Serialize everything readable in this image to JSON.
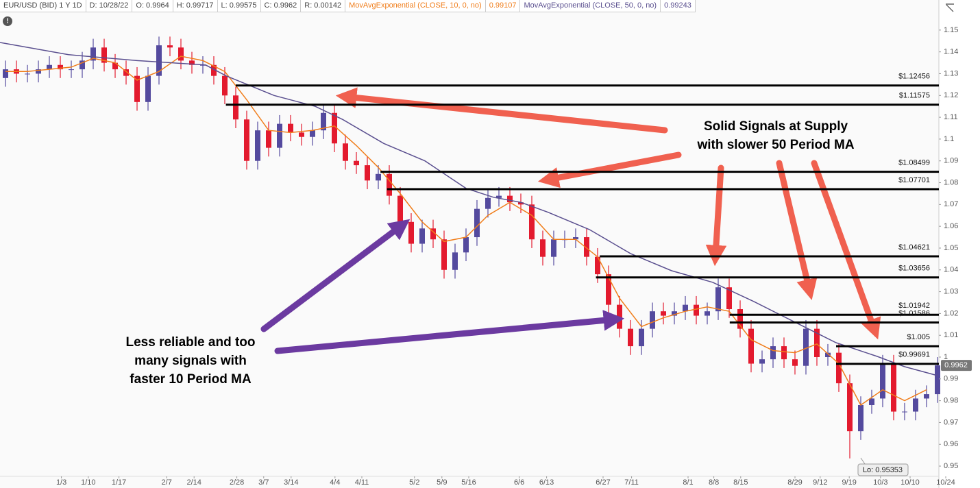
{
  "header": [
    "EUR/USD (BID) 1 Y 1D",
    "D: 10/28/22",
    "O: 0.9964",
    "H: 0.99717",
    "L: 0.99575",
    "C: 0.9962",
    "R: 0.00142"
  ],
  "chart_data": {
    "type": "candlestick",
    "xlim": [
      0,
      171
    ],
    "ylim": [
      0.9453,
      1.1575
    ],
    "yticks": [
      0.95,
      0.96,
      0.97,
      0.98,
      0.99,
      1,
      1.01,
      1.02,
      1.03,
      1.04,
      1.05,
      1.06,
      1.07,
      1.08,
      1.09,
      1.1,
      1.11,
      1.12,
      1.13,
      1.14,
      1.15
    ],
    "xticks": [
      {
        "value": 11.2,
        "label": "1/3"
      },
      {
        "value": 16.1,
        "label": "1/10"
      },
      {
        "value": 21.7,
        "label": "1/17"
      },
      {
        "value": 30.4,
        "label": "2/7"
      },
      {
        "value": 35.4,
        "label": "2/14"
      },
      {
        "value": 43.2,
        "label": "2/28"
      },
      {
        "value": 48.1,
        "label": "3/7"
      },
      {
        "value": 53.1,
        "label": "3/14"
      },
      {
        "value": 61.1,
        "label": "4/4"
      },
      {
        "value": 66,
        "label": "4/11"
      },
      {
        "value": 75.6,
        "label": "5/2"
      },
      {
        "value": 80.6,
        "label": "5/9"
      },
      {
        "value": 85.5,
        "label": "5/16"
      },
      {
        "value": 94.7,
        "label": "6/6"
      },
      {
        "value": 99.7,
        "label": "6/13"
      },
      {
        "value": 110,
        "label": "6/27"
      },
      {
        "value": 115.2,
        "label": "7/11"
      },
      {
        "value": 125.5,
        "label": "8/1"
      },
      {
        "value": 130.2,
        "label": "8/8"
      },
      {
        "value": 135.1,
        "label": "8/15"
      },
      {
        "value": 145,
        "label": "8/29"
      },
      {
        "value": 149.6,
        "label": "9/12"
      },
      {
        "value": 154.9,
        "label": "9/19"
      },
      {
        "value": 160.6,
        "label": "10/3"
      },
      {
        "value": 166,
        "label": "10/10"
      },
      {
        "value": 172.5,
        "label": "10/24"
      }
    ],
    "up_color": "#544a9e",
    "down_color": "#e31a2e",
    "candles": {
      "x": [
        1,
        3,
        5,
        7,
        9,
        11,
        13,
        15,
        17,
        19,
        21,
        23,
        25,
        27,
        29,
        31,
        33,
        35,
        37,
        39,
        41,
        43,
        45,
        47,
        49,
        51,
        53,
        55,
        57,
        59,
        61,
        63,
        65,
        67,
        69,
        71,
        73,
        75,
        77,
        79,
        81,
        83,
        85,
        87,
        89,
        91,
        93,
        95,
        97,
        99,
        101,
        103,
        105,
        107,
        109,
        111,
        113,
        115,
        117,
        119,
        121,
        123,
        125,
        127,
        129,
        131,
        133,
        135,
        137,
        139,
        141,
        143,
        145,
        147,
        149,
        151,
        153,
        155,
        157,
        159,
        161,
        163,
        165,
        167,
        169,
        171
      ],
      "open": [
        1.128,
        1.132,
        1.13,
        1.13,
        1.132,
        1.134,
        1.132,
        1.132,
        1.136,
        1.142,
        1.135,
        1.132,
        1.129,
        1.117,
        1.129,
        1.143,
        1.142,
        1.136,
        1.134,
        1.134,
        1.129,
        1.12,
        1.109,
        1.09,
        1.104,
        1.096,
        1.107,
        1.103,
        1.101,
        1.104,
        1.112,
        1.098,
        1.09,
        1.088,
        1.081,
        1.084,
        1.074,
        1.062,
        1.052,
        1.059,
        1.054,
        1.04,
        1.048,
        1.055,
        1.068,
        1.073,
        1.074,
        1.071,
        1.07,
        1.054,
        1.046,
        1.054,
        1.054,
        1.055,
        1.046,
        1.038,
        1.024,
        1.013,
        1.005,
        1.013,
        1.021,
        1.019,
        1.021,
        1.024,
        1.019,
        1.021,
        1.032,
        1.022,
        1.013,
        0.997,
        0.999,
        1.005,
        0.999,
        0.996,
        1.013,
        1.0,
        1.002,
        0.988,
        0.966,
        0.978,
        0.981,
        0.997,
        0.975,
        0.975,
        0.981,
        0.983
      ],
      "high": [
        1.136,
        1.136,
        1.134,
        1.136,
        1.138,
        1.138,
        1.136,
        1.14,
        1.146,
        1.146,
        1.139,
        1.136,
        1.133,
        1.133,
        1.147,
        1.147,
        1.146,
        1.14,
        1.138,
        1.138,
        1.133,
        1.124,
        1.113,
        1.108,
        1.108,
        1.111,
        1.111,
        1.107,
        1.108,
        1.116,
        1.116,
        1.102,
        1.094,
        1.092,
        1.088,
        1.088,
        1.078,
        1.066,
        1.063,
        1.063,
        1.058,
        1.052,
        1.059,
        1.072,
        1.077,
        1.078,
        1.078,
        1.075,
        1.074,
        1.058,
        1.058,
        1.058,
        1.059,
        1.059,
        1.05,
        1.042,
        1.028,
        1.017,
        1.017,
        1.025,
        1.025,
        1.025,
        1.028,
        1.028,
        1.025,
        1.036,
        1.036,
        1.026,
        1.017,
        1.003,
        1.009,
        1.009,
        1.003,
        1.017,
        1.017,
        1.006,
        1.006,
        0.992,
        0.982,
        0.985,
        1.001,
        1.001,
        0.979,
        0.985,
        0.987,
        1.0
      ],
      "low": [
        1.124,
        1.126,
        1.126,
        1.126,
        1.128,
        1.128,
        1.128,
        1.128,
        1.132,
        1.131,
        1.128,
        1.125,
        1.113,
        1.113,
        1.125,
        1.138,
        1.132,
        1.13,
        1.13,
        1.125,
        1.116,
        1.105,
        1.086,
        1.086,
        1.092,
        1.092,
        1.099,
        1.097,
        1.097,
        1.1,
        1.094,
        1.086,
        1.084,
        1.077,
        1.077,
        1.07,
        1.058,
        1.048,
        1.048,
        1.05,
        1.036,
        1.036,
        1.044,
        1.051,
        1.064,
        1.069,
        1.067,
        1.066,
        1.05,
        1.042,
        1.042,
        1.05,
        1.05,
        1.042,
        1.034,
        1.02,
        1.009,
        1.001,
        1.001,
        1.009,
        1.015,
        1.015,
        1.017,
        1.015,
        1.015,
        1.017,
        1.018,
        1.009,
        0.993,
        0.993,
        0.995,
        0.995,
        0.992,
        0.992,
        0.996,
        0.996,
        0.984,
        0.95353,
        0.962,
        0.974,
        0.977,
        0.971,
        0.971,
        0.971,
        0.977,
        0.979
      ],
      "close": [
        1.132,
        1.13,
        1.13,
        1.132,
        1.134,
        1.132,
        1.132,
        1.136,
        1.142,
        1.135,
        1.132,
        1.129,
        1.117,
        1.129,
        1.143,
        1.142,
        1.136,
        1.134,
        1.134,
        1.129,
        1.12,
        1.109,
        1.09,
        1.104,
        1.096,
        1.107,
        1.103,
        1.101,
        1.104,
        1.112,
        1.098,
        1.09,
        1.088,
        1.081,
        1.084,
        1.074,
        1.062,
        1.052,
        1.059,
        1.054,
        1.04,
        1.048,
        1.055,
        1.068,
        1.073,
        1.074,
        1.071,
        1.07,
        1.054,
        1.046,
        1.054,
        1.054,
        1.055,
        1.046,
        1.038,
        1.024,
        1.013,
        1.005,
        1.013,
        1.021,
        1.019,
        1.021,
        1.024,
        1.019,
        1.021,
        1.032,
        1.022,
        1.013,
        0.997,
        0.999,
        1.005,
        0.999,
        0.996,
        1.013,
        1.0,
        1.002,
        0.988,
        0.966,
        0.978,
        0.981,
        0.997,
        0.975,
        0.975,
        0.981,
        0.983,
        0.9962
      ]
    },
    "last_price": 0.9962,
    "low_label": "Lo: 0.95353",
    "series": [
      {
        "name": "MovAvgExponential (CLOSE, 10, 0, no)",
        "last_value": 0.99107,
        "color": "#f07d1a",
        "x": [
          1,
          5,
          9,
          13,
          17,
          21,
          25,
          29,
          33,
          37,
          41,
          45,
          49,
          53,
          57,
          61,
          65,
          69,
          73,
          77,
          81,
          85,
          89,
          93,
          97,
          101,
          105,
          109,
          113,
          117,
          121,
          125,
          129,
          133,
          137,
          141,
          145,
          149,
          153,
          157,
          161,
          165,
          169
        ],
        "values": [
          1.131,
          1.131,
          1.132,
          1.133,
          1.137,
          1.135,
          1.127,
          1.131,
          1.138,
          1.136,
          1.131,
          1.118,
          1.104,
          1.103,
          1.104,
          1.106,
          1.097,
          1.087,
          1.075,
          1.062,
          1.053,
          1.055,
          1.065,
          1.071,
          1.065,
          1.054,
          1.054,
          1.046,
          1.027,
          1.014,
          1.018,
          1.021,
          1.023,
          1.021,
          1.008,
          1.003,
          1.002,
          1.006,
          0.997,
          0.978,
          0.985,
          0.98,
          0.985
        ]
      },
      {
        "name": "MovAvgExponential (CLOSE, 50, 0, no)",
        "last_value": 0.99243,
        "color": "#5a4f8f",
        "x": [
          0,
          12.5,
          25,
          37.5,
          41.25,
          50,
          57.5,
          62.5,
          70,
          77.5,
          85,
          90,
          95,
          100,
          107.5,
          115,
          122.5,
          130,
          137.5,
          145,
          152.5,
          160,
          165,
          171
        ],
        "values": [
          1.1443,
          1.1387,
          1.136,
          1.134,
          1.129,
          1.12,
          1.115,
          1.109,
          1.098,
          1.09,
          1.0774,
          1.0733,
          1.071,
          1.0664,
          1.0585,
          1.0475,
          1.0396,
          1.0343,
          1.0255,
          1.016,
          1.0066,
          1.0003,
          0.9956,
          0.9915
        ]
      }
    ],
    "levels": [
      {
        "value": 1.12456,
        "label": "$1.12456",
        "from": 43
      },
      {
        "value": 1.11575,
        "label": "$1.11575",
        "from": 41.2
      },
      {
        "value": 1.08499,
        "label": "$1.08499",
        "from": 69.4
      },
      {
        "value": 1.07701,
        "label": "$1.07701",
        "from": 70.6
      },
      {
        "value": 1.04621,
        "label": "$1.04621",
        "from": 109.4
      },
      {
        "value": 1.03656,
        "label": "$1.03656",
        "from": 108.7
      },
      {
        "value": 1.01942,
        "label": "$1.01942",
        "from": 133.1
      },
      {
        "value": 1.01586,
        "label": "$1.01586",
        "from": 133.1
      },
      {
        "value": 1.005,
        "label": "$1.005",
        "from": 152.5
      },
      {
        "value": 0.99691,
        "label": "$0.99691",
        "from": 152.5
      }
    ],
    "annotations": [
      {
        "lines": [
          "Solid Signals at Supply",
          "with slower 50 Period MA"
        ]
      },
      {
        "lines": [
          "Less reliable and too",
          "many signals with",
          "faster 10 Period MA"
        ]
      }
    ]
  }
}
